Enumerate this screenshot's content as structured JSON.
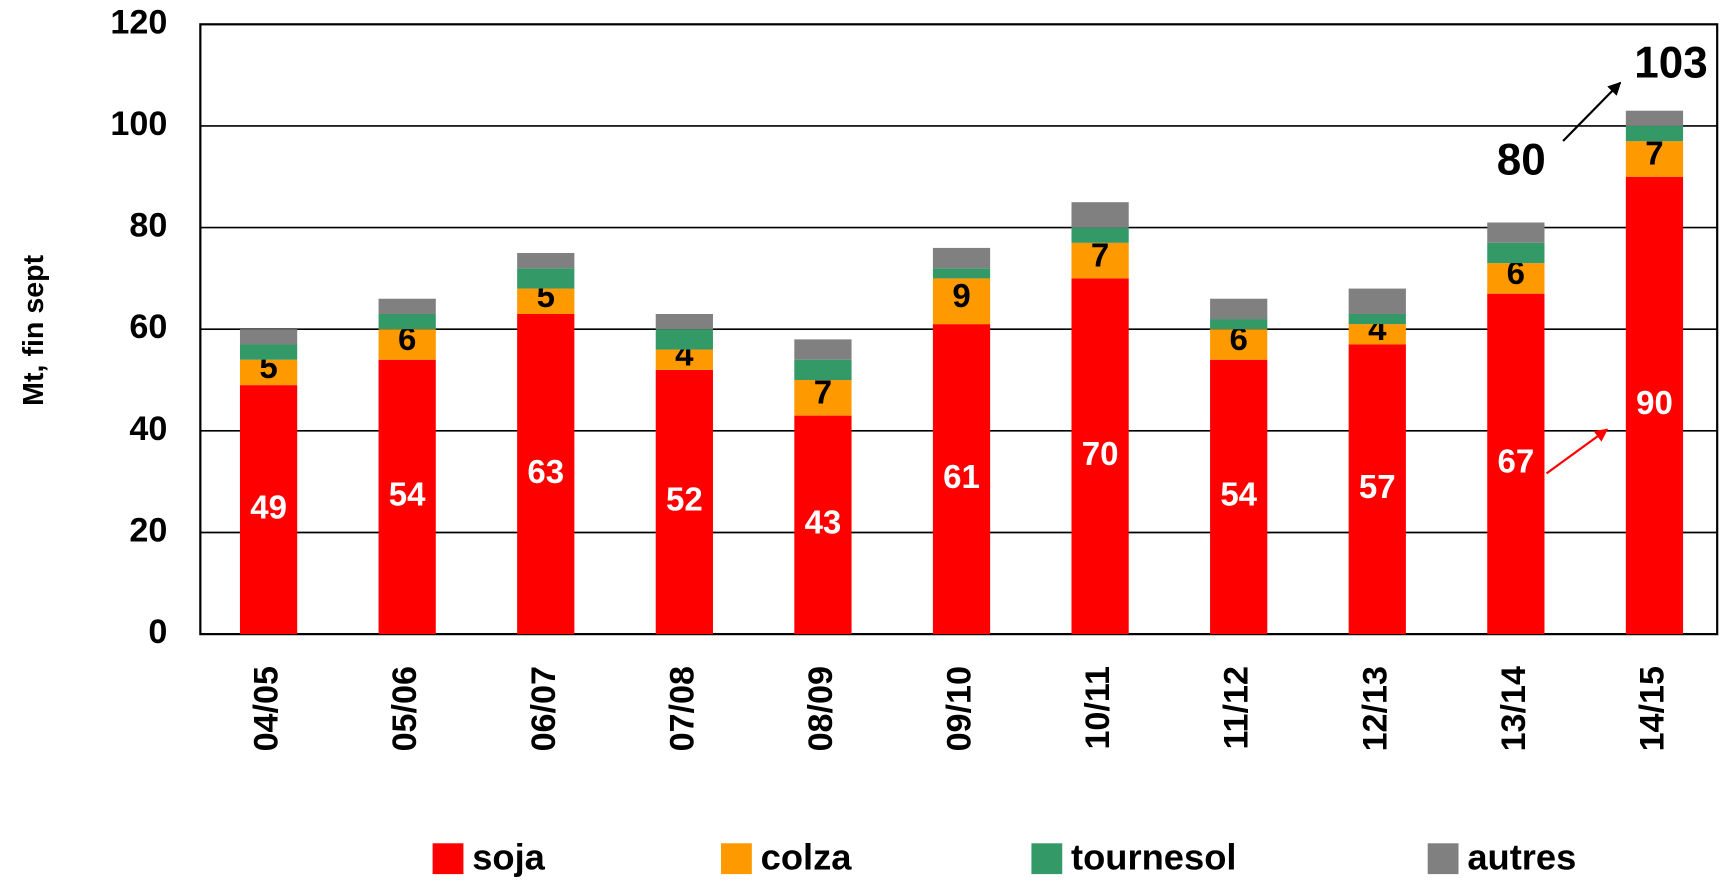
{
  "chart_data": {
    "type": "stacked_bar",
    "y_label": "Mt, fin sept",
    "categories": [
      "04/05",
      "05/06",
      "06/07",
      "07/08",
      "08/09",
      "09/10",
      "10/11",
      "11/12",
      "12/13",
      "13/14",
      "14/15"
    ],
    "series": [
      {
        "name": "soja",
        "color": "#ff0000",
        "labels": true,
        "values": [
          49,
          54,
          63,
          52,
          43,
          61,
          70,
          54,
          57,
          67,
          90
        ]
      },
      {
        "name": "colza",
        "color": "#ff9900",
        "labels": true,
        "values": [
          5,
          6,
          5,
          4,
          7,
          9,
          7,
          6,
          4,
          6,
          7
        ]
      },
      {
        "name": "tournesol",
        "color": "#339966",
        "labels": false,
        "values": [
          3,
          3,
          4,
          4,
          4,
          2,
          3,
          2,
          2,
          4,
          3
        ]
      },
      {
        "name": "autres",
        "color": "#808080",
        "labels": false,
        "values": [
          3,
          3,
          3,
          3,
          4,
          4,
          5,
          4,
          5,
          4,
          3
        ]
      }
    ],
    "ylim": [
      0,
      120
    ],
    "yticks": [
      0,
      20,
      40,
      60,
      80,
      100,
      120
    ],
    "grid": true,
    "legend": "bottom",
    "annotations": [
      "80",
      "103"
    ]
  }
}
